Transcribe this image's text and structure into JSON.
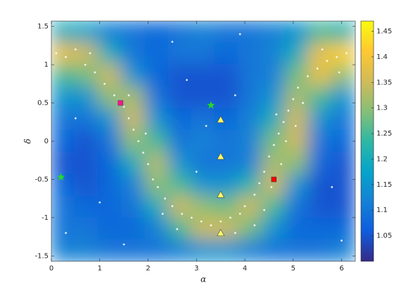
{
  "chart_data": {
    "type": "heatmap-scatter",
    "xlabel": "α",
    "ylabel": "δ",
    "xlim": [
      0,
      6.2832
    ],
    "ylim": [
      -1.5708,
      1.5708
    ],
    "xticks": [
      0,
      1,
      2,
      3,
      4,
      5,
      6
    ],
    "yticks": [
      -1.5,
      -1,
      -0.5,
      0,
      0.5,
      1,
      1.5
    ],
    "clim": [
      1.0,
      1.47
    ],
    "cticks": [
      1.05,
      1.1,
      1.15,
      1.2,
      1.25,
      1.3,
      1.35,
      1.4,
      1.45
    ],
    "colormap": [
      "#352a87",
      "#0f5cdd",
      "#1481d6",
      "#06a4ca",
      "#2eb7a4",
      "#87bf77",
      "#d1bb59",
      "#fec832",
      "#f9fb0e"
    ],
    "field": {
      "x": [
        0.24,
        0.72,
        1.21,
        1.69,
        2.18,
        2.66,
        3.14,
        3.62,
        4.11,
        4.59,
        5.07,
        5.56,
        6.04
      ],
      "y": [
        1.43,
        1.14,
        0.86,
        0.57,
        0.29,
        0,
        -0.29,
        -0.57,
        -0.86,
        -1.14,
        -1.43
      ],
      "z": [
        [
          1.2,
          1.18,
          1.12,
          1.1,
          1.08,
          1.1,
          1.12,
          1.1,
          1.1,
          1.12,
          1.15,
          1.25,
          1.22
        ],
        [
          1.38,
          1.35,
          1.2,
          1.1,
          1.08,
          1.1,
          1.1,
          1.08,
          1.1,
          1.12,
          1.2,
          1.38,
          1.42
        ],
        [
          1.25,
          1.28,
          1.35,
          1.15,
          1.08,
          1.05,
          1.05,
          1.05,
          1.1,
          1.12,
          1.28,
          1.38,
          1.3
        ],
        [
          1.15,
          1.15,
          1.3,
          1.32,
          1.1,
          1.05,
          1.05,
          1.05,
          1.1,
          1.15,
          1.32,
          1.25,
          1.15
        ],
        [
          1.1,
          1.1,
          1.15,
          1.35,
          1.15,
          1.08,
          1.1,
          1.08,
          1.12,
          1.2,
          1.35,
          1.15,
          1.1
        ],
        [
          1.08,
          1.05,
          1.1,
          1.3,
          1.25,
          1.1,
          1.12,
          1.1,
          1.12,
          1.28,
          1.35,
          1.1,
          1.08
        ],
        [
          1.05,
          1.05,
          1.08,
          1.2,
          1.33,
          1.15,
          1.1,
          1.1,
          1.12,
          1.32,
          1.3,
          1.08,
          1.05
        ],
        [
          1.08,
          1.05,
          1.08,
          1.12,
          1.3,
          1.25,
          1.15,
          1.15,
          1.22,
          1.35,
          1.15,
          1.05,
          1.05
        ],
        [
          1.1,
          1.08,
          1.08,
          1.1,
          1.2,
          1.35,
          1.3,
          1.28,
          1.35,
          1.25,
          1.1,
          1.05,
          1.05
        ],
        [
          1.1,
          1.1,
          1.08,
          1.08,
          1.12,
          1.25,
          1.35,
          1.35,
          1.28,
          1.15,
          1.08,
          1.08,
          1.08
        ],
        [
          1.12,
          1.12,
          1.1,
          1.1,
          1.1,
          1.12,
          1.15,
          1.15,
          1.12,
          1.1,
          1.1,
          1.1,
          1.12
        ]
      ]
    },
    "points": {
      "color": "#ffffff",
      "x": [
        0.1,
        0.3,
        0.5,
        0.7,
        0.9,
        1.1,
        1.3,
        1.5,
        1.6,
        1.7,
        1.8,
        1.9,
        2.0,
        2.1,
        2.2,
        2.35,
        2.5,
        2.7,
        2.9,
        3.1,
        3.3,
        3.5,
        3.7,
        3.9,
        4.0,
        4.2,
        4.3,
        4.4,
        4.5,
        4.6,
        4.7,
        4.8,
        4.9,
        5.0,
        5.1,
        5.3,
        5.5,
        5.7,
        5.9,
        6.1,
        4.55,
        4.75,
        4.85,
        5.05,
        5.2,
        4.65,
        4.4,
        4.2,
        3.8,
        2.6,
        2.3,
        1.6,
        1.95,
        0.8,
        5.6,
        5.95,
        0.5,
        1.0,
        0.3,
        2.8,
        3.2,
        3.8,
        2.5,
        3.9,
        5.8,
        6.0,
        1.5,
        3.0
      ],
      "y": [
        1.15,
        1.1,
        1.2,
        1.0,
        0.9,
        0.75,
        0.6,
        0.45,
        0.3,
        0.15,
        0.0,
        -0.15,
        -0.3,
        -0.5,
        -0.6,
        -0.75,
        -0.85,
        -0.95,
        -1.0,
        -1.05,
        -1.1,
        -1.05,
        -1.0,
        -0.95,
        -0.85,
        -0.7,
        -0.55,
        -0.4,
        -0.2,
        -0.05,
        0.1,
        0.25,
        0.4,
        0.55,
        0.7,
        0.85,
        0.95,
        1.05,
        1.1,
        1.15,
        -0.6,
        -0.3,
        0.0,
        0.2,
        0.5,
        0.35,
        -0.9,
        -1.1,
        -1.2,
        -1.15,
        -0.95,
        0.6,
        0.1,
        1.15,
        1.2,
        0.9,
        0.3,
        -0.8,
        -1.2,
        0.8,
        0.2,
        0.6,
        1.3,
        1.4,
        -0.6,
        -1.3,
        -1.35,
        -0.4
      ]
    },
    "markers": [
      {
        "x": 0.2,
        "y": -0.47,
        "shape": "star",
        "color": "#22dd22"
      },
      {
        "x": 3.3,
        "y": 0.47,
        "shape": "star",
        "color": "#22dd22"
      },
      {
        "x": 1.43,
        "y": 0.5,
        "shape": "square",
        "color": "#ff1493"
      },
      {
        "x": 4.6,
        "y": -0.5,
        "shape": "square",
        "color": "#ff0000"
      },
      {
        "x": 3.5,
        "y": 0.28,
        "shape": "triangle",
        "color": "#ffff66"
      },
      {
        "x": 3.5,
        "y": -0.2,
        "shape": "triangle",
        "color": "#ffff66"
      },
      {
        "x": 3.5,
        "y": -0.7,
        "shape": "triangle",
        "color": "#ffff66"
      },
      {
        "x": 3.5,
        "y": -1.2,
        "shape": "triangle",
        "color": "#ffff66"
      }
    ]
  }
}
